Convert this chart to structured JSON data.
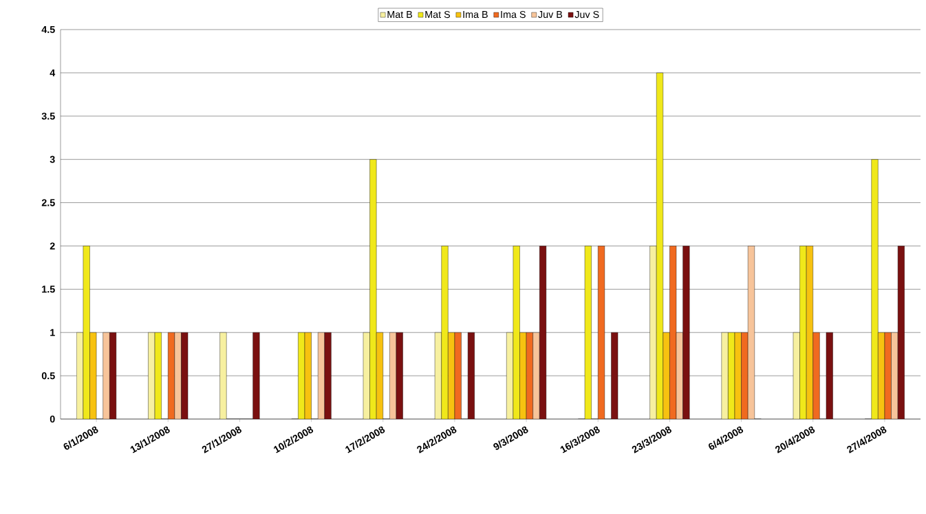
{
  "chart_data": {
    "type": "bar",
    "categories": [
      "6/1/2008",
      "13/1/2008",
      "27/1/2008",
      "10/2/2008",
      "17/2/2008",
      "24/2/2008",
      "9/3/2008",
      "16/3/2008",
      "23/3/2008",
      "6/4/2008",
      "20/4/2008",
      "27/4/2008"
    ],
    "series": [
      {
        "name": "Mat B",
        "color": "#f7f0a0",
        "values": [
          1,
          1,
          1,
          0,
          1,
          1,
          1,
          0,
          2,
          1,
          1,
          0
        ]
      },
      {
        "name": "Mat S",
        "color": "#f0e81a",
        "values": [
          2,
          1,
          0,
          1,
          3,
          2,
          2,
          2,
          4,
          1,
          2,
          3
        ]
      },
      {
        "name": "Ima B",
        "color": "#f7c210",
        "values": [
          1,
          0,
          0,
          1,
          1,
          1,
          1,
          0,
          1,
          1,
          2,
          1
        ]
      },
      {
        "name": "Ima S",
        "color": "#f06a20",
        "values": [
          0,
          1,
          0,
          0,
          0,
          1,
          1,
          2,
          2,
          1,
          1,
          1
        ]
      },
      {
        "name": "Juv B",
        "color": "#f7c49a",
        "values": [
          1,
          1,
          0,
          1,
          1,
          0,
          1,
          0,
          1,
          2,
          0,
          1
        ]
      },
      {
        "name": "Juv S",
        "color": "#7a1010",
        "values": [
          1,
          1,
          1,
          1,
          1,
          1,
          2,
          1,
          2,
          0,
          1,
          2
        ]
      }
    ],
    "ylim": [
      0,
      4.5
    ],
    "yticks": [
      0,
      0.5,
      1,
      1.5,
      2,
      2.5,
      3,
      3.5,
      4,
      4.5
    ],
    "grid": "y",
    "legend": "top"
  }
}
